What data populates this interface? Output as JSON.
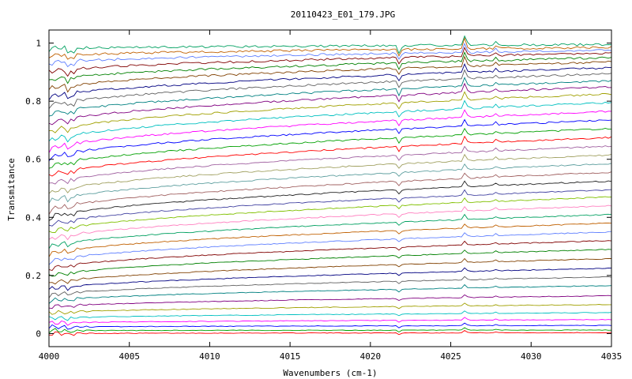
{
  "chart_data": {
    "type": "line",
    "title": "20110423_E01_179.JPG",
    "xlabel": "Wavenumbers (cm-1)",
    "ylabel": "Transmitance",
    "xlim": [
      4000,
      4035
    ],
    "ylim": [
      -0.045,
      1.045
    ],
    "x_ticks": [
      4000,
      4005,
      4010,
      4015,
      4020,
      4025,
      4030,
      4035
    ],
    "y_ticks": [
      0,
      0.2,
      0.4,
      0.6,
      0.8,
      1
    ],
    "x_tick_labels": [
      "4000",
      "4005",
      "4010",
      "4015",
      "4020",
      "4025",
      "4030",
      "4035"
    ],
    "y_tick_labels": [
      "0",
      "0.2",
      "0.4",
      "0.6",
      "0.8",
      "1"
    ],
    "grid": false,
    "legend": "none",
    "colors": [
      "#ff0000",
      "#00a000",
      "#0000ff",
      "#ff00ff",
      "#00c0c0",
      "#a0a000",
      "#800080",
      "#008080",
      "#606060",
      "#000080",
      "#804000",
      "#008000",
      "#800000",
      "#6080ff",
      "#c06000",
      "#00a060",
      "#ff80c0",
      "#80c000",
      "#4040a0",
      "#202020",
      "#a06060",
      "#60a0a0",
      "#a0a060",
      "#a060a0"
    ],
    "series_count": 40,
    "series": [
      {
        "end_start": 0.0,
        "end_end": 0.003
      },
      {
        "end_start": 0.01,
        "end_end": 0.012
      },
      {
        "end_start": 0.022,
        "end_end": 0.028
      },
      {
        "end_start": 0.036,
        "end_end": 0.048
      },
      {
        "end_start": 0.052,
        "end_end": 0.072
      },
      {
        "end_start": 0.07,
        "end_end": 0.1
      },
      {
        "end_start": 0.09,
        "end_end": 0.13
      },
      {
        "end_start": 0.11,
        "end_end": 0.165
      },
      {
        "end_start": 0.13,
        "end_end": 0.195
      },
      {
        "end_start": 0.15,
        "end_end": 0.225
      },
      {
        "end_start": 0.17,
        "end_end": 0.258
      },
      {
        "end_start": 0.195,
        "end_end": 0.29
      },
      {
        "end_start": 0.22,
        "end_end": 0.32
      },
      {
        "end_start": 0.245,
        "end_end": 0.35
      },
      {
        "end_start": 0.27,
        "end_end": 0.38
      },
      {
        "end_start": 0.295,
        "end_end": 0.41
      },
      {
        "end_start": 0.32,
        "end_end": 0.44
      },
      {
        "end_start": 0.345,
        "end_end": 0.47
      },
      {
        "end_start": 0.37,
        "end_end": 0.495
      },
      {
        "end_start": 0.395,
        "end_end": 0.525
      },
      {
        "end_start": 0.42,
        "end_end": 0.555
      },
      {
        "end_start": 0.45,
        "end_end": 0.585
      },
      {
        "end_start": 0.48,
        "end_end": 0.615
      },
      {
        "end_start": 0.51,
        "end_end": 0.645
      },
      {
        "end_start": 0.54,
        "end_end": 0.675
      },
      {
        "end_start": 0.57,
        "end_end": 0.705
      },
      {
        "end_start": 0.6,
        "end_end": 0.735
      },
      {
        "end_start": 0.63,
        "end_end": 0.765
      },
      {
        "end_start": 0.66,
        "end_end": 0.795
      },
      {
        "end_start": 0.69,
        "end_end": 0.825
      },
      {
        "end_start": 0.72,
        "end_end": 0.85
      },
      {
        "end_start": 0.75,
        "end_end": 0.87
      },
      {
        "end_start": 0.78,
        "end_end": 0.895
      },
      {
        "end_start": 0.81,
        "end_end": 0.915
      },
      {
        "end_start": 0.84,
        "end_end": 0.935
      },
      {
        "end_start": 0.87,
        "end_end": 0.95
      },
      {
        "end_start": 0.9,
        "end_end": 0.965
      },
      {
        "end_start": 0.93,
        "end_end": 0.975
      },
      {
        "end_start": 0.955,
        "end_end": 0.985
      },
      {
        "end_start": 0.98,
        "end_end": 0.995
      }
    ],
    "features": [
      {
        "x": 4001.2,
        "depth": 0.018
      },
      {
        "x": 4001.5,
        "depth": 0.014
      },
      {
        "x": 4021.8,
        "depth": 0.02
      },
      {
        "x": 4025.9,
        "depth": 0.03
      },
      {
        "x": 4027.8,
        "depth": 0.01
      }
    ]
  }
}
